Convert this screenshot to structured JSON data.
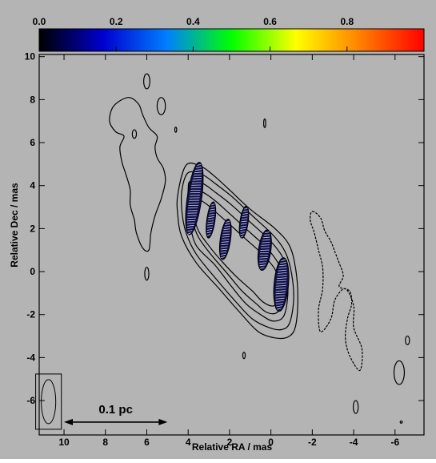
{
  "chart_data": {
    "type": "contour",
    "xlabel": "Relative RA / mas",
    "ylabel": "Relative Dec / mas",
    "xlim": [
      11.2,
      -7.4
    ],
    "ylim": [
      -7.6,
      10.1
    ],
    "x_ticks": [
      10,
      8,
      6,
      4,
      2,
      0,
      -2,
      -4,
      -6
    ],
    "x_tick_labels": [
      "10",
      "8",
      "6",
      "4",
      "2",
      "0",
      "-2",
      "-4",
      "-6"
    ],
    "y_ticks": [
      10,
      8,
      6,
      4,
      2,
      0,
      -2,
      -4,
      -6
    ],
    "y_tick_labels": [
      "10",
      "8",
      "6",
      "4",
      "2",
      "0",
      "-2",
      "-4",
      "-6"
    ],
    "colorbar": {
      "range": [
        0.0,
        1.0
      ],
      "tick_values": [
        0.0,
        0.2,
        0.4,
        0.6,
        0.8
      ],
      "tick_labels": [
        "0.0",
        "0.2",
        "0.4",
        "0.6",
        "0.8"
      ],
      "colors": [
        "#000000",
        "#0000d0",
        "#0080ff",
        "#00ff00",
        "#ffff00",
        "#ff8000",
        "#ff0000"
      ]
    },
    "beam": {
      "x": 10.75,
      "y": -6.05,
      "width_mas": 0.7,
      "height_mas": 2.05
    },
    "scale_bar": {
      "label": "0.1 pc",
      "x_from": 10.0,
      "x_to": 5.0,
      "y": -7.0
    },
    "jet_contours": [
      [
        [
          4.1,
          4.95
        ],
        [
          3.4,
          4.9
        ],
        [
          2.8,
          4.5
        ],
        [
          2.0,
          3.8
        ],
        [
          1.0,
          2.9
        ],
        [
          -0.2,
          2.0
        ],
        [
          -0.9,
          1.2
        ],
        [
          -1.2,
          0.1
        ],
        [
          -1.3,
          -1.2
        ],
        [
          -1.2,
          -2.5
        ],
        [
          -0.9,
          -3.0
        ],
        [
          -0.3,
          -3.1
        ],
        [
          0.6,
          -2.8
        ],
        [
          1.5,
          -1.9
        ],
        [
          2.5,
          -0.8
        ],
        [
          3.6,
          0.4
        ],
        [
          4.3,
          1.6
        ],
        [
          4.5,
          2.6
        ],
        [
          4.5,
          3.6
        ]
      ],
      [
        [
          4.0,
          4.6
        ],
        [
          3.3,
          4.5
        ],
        [
          2.7,
          4.1
        ],
        [
          1.9,
          3.5
        ],
        [
          0.9,
          2.6
        ],
        [
          -0.1,
          1.7
        ],
        [
          -0.7,
          0.9
        ],
        [
          -1.0,
          -0.1
        ],
        [
          -1.1,
          -1.3
        ],
        [
          -0.9,
          -2.4
        ],
        [
          -0.5,
          -2.7
        ],
        [
          0.1,
          -2.6
        ],
        [
          0.9,
          -2.2
        ],
        [
          1.7,
          -1.4
        ],
        [
          2.6,
          -0.4
        ],
        [
          3.6,
          0.8
        ],
        [
          4.1,
          1.8
        ],
        [
          4.3,
          2.8
        ],
        [
          4.3,
          3.8
        ]
      ],
      [
        [
          3.9,
          4.2
        ],
        [
          3.3,
          4.1
        ],
        [
          2.7,
          3.7
        ],
        [
          1.9,
          3.1
        ],
        [
          1.0,
          2.3
        ],
        [
          0.0,
          1.4
        ],
        [
          -0.6,
          0.6
        ],
        [
          -0.8,
          -0.3
        ],
        [
          -0.8,
          -1.3
        ],
        [
          -0.6,
          -2.1
        ],
        [
          -0.1,
          -2.3
        ],
        [
          0.5,
          -2.0
        ],
        [
          1.2,
          -1.5
        ],
        [
          1.9,
          -0.7
        ],
        [
          2.7,
          0.3
        ],
        [
          3.6,
          1.2
        ],
        [
          3.9,
          2.2
        ],
        [
          4.0,
          3.1
        ],
        [
          4.0,
          3.8
        ]
      ],
      [
        [
          3.8,
          3.8
        ],
        [
          3.3,
          3.7
        ],
        [
          2.7,
          3.3
        ],
        [
          2.0,
          2.7
        ],
        [
          1.1,
          1.9
        ],
        [
          0.2,
          1.1
        ],
        [
          -0.4,
          0.3
        ],
        [
          -0.6,
          -0.5
        ],
        [
          -0.6,
          -1.3
        ],
        [
          -0.3,
          -1.9
        ],
        [
          0.2,
          -1.9
        ],
        [
          0.7,
          -1.5
        ],
        [
          1.4,
          -0.9
        ],
        [
          2.1,
          -0.1
        ],
        [
          2.9,
          0.8
        ],
        [
          3.5,
          1.6
        ],
        [
          3.8,
          2.4
        ],
        [
          3.9,
          3.2
        ]
      ],
      [
        [
          3.7,
          3.4
        ],
        [
          3.2,
          3.2
        ],
        [
          2.7,
          2.8
        ],
        [
          2.0,
          2.2
        ],
        [
          1.2,
          1.5
        ],
        [
          0.4,
          0.8
        ],
        [
          -0.2,
          0.1
        ],
        [
          -0.4,
          -0.6
        ],
        [
          -0.4,
          -1.3
        ],
        [
          -0.1,
          -1.6
        ],
        [
          0.4,
          -1.4
        ],
        [
          0.9,
          -0.9
        ],
        [
          1.6,
          -0.3
        ],
        [
          2.3,
          0.4
        ],
        [
          3.0,
          1.2
        ],
        [
          3.5,
          1.9
        ],
        [
          3.7,
          2.6
        ]
      ]
    ],
    "west_lobe_contour": [
      [
        6.9,
        8.1
      ],
      [
        7.6,
        7.7
      ],
      [
        7.8,
        7.0
      ],
      [
        7.5,
        6.5
      ],
      [
        7.1,
        6.3
      ],
      [
        7.3,
        5.8
      ],
      [
        7.2,
        5.1
      ],
      [
        7.0,
        4.5
      ],
      [
        6.8,
        3.8
      ],
      [
        6.8,
        3.1
      ],
      [
        6.6,
        2.4
      ],
      [
        6.5,
        1.8
      ],
      [
        6.2,
        1.1
      ],
      [
        5.9,
        1.0
      ],
      [
        5.8,
        1.8
      ],
      [
        5.6,
        2.6
      ],
      [
        5.3,
        3.4
      ],
      [
        5.1,
        4.2
      ],
      [
        5.2,
        4.8
      ],
      [
        5.5,
        5.3
      ],
      [
        5.6,
        5.8
      ],
      [
        5.5,
        6.3
      ],
      [
        5.9,
        6.7
      ],
      [
        6.2,
        7.3
      ],
      [
        6.4,
        7.8
      ]
    ],
    "east_contour": [
      [
        -2.0,
        2.8
      ],
      [
        -2.4,
        2.5
      ],
      [
        -2.6,
        1.9
      ],
      [
        -2.9,
        1.4
      ],
      [
        -3.1,
        0.9
      ],
      [
        -3.3,
        0.4
      ],
      [
        -3.5,
        -0.2
      ],
      [
        -3.3,
        -0.7
      ],
      [
        -3.8,
        -0.9
      ],
      [
        -3.9,
        -1.5
      ],
      [
        -3.7,
        -2.2
      ],
      [
        -3.6,
        -3.1
      ],
      [
        -3.8,
        -3.9
      ],
      [
        -4.3,
        -4.6
      ],
      [
        -4.4,
        -3.6
      ],
      [
        -4.0,
        -2.6
      ],
      [
        -4.0,
        -1.6
      ],
      [
        -3.6,
        -0.8
      ],
      [
        -3.1,
        -1.3
      ],
      [
        -2.9,
        -2.2
      ],
      [
        -2.4,
        -2.8
      ],
      [
        -2.3,
        -1.8
      ],
      [
        -2.5,
        -0.8
      ],
      [
        -2.5,
        0.2
      ],
      [
        -2.3,
        1.0
      ],
      [
        -2.1,
        1.8
      ],
      [
        -1.9,
        2.4
      ]
    ],
    "small_contours": [
      {
        "x": 6.0,
        "y": 8.85,
        "rx": 0.15,
        "ry": 0.35
      },
      {
        "x": 5.3,
        "y": 7.7,
        "rx": 0.2,
        "ry": 0.4
      },
      {
        "x": 6.6,
        "y": 6.4,
        "rx": 0.1,
        "ry": 0.2
      },
      {
        "x": 4.6,
        "y": 6.6,
        "rx": 0.04,
        "ry": 0.12
      },
      {
        "x": 0.3,
        "y": 6.9,
        "rx": 0.05,
        "ry": 0.2
      },
      {
        "x": 6.0,
        "y": -0.1,
        "rx": 0.1,
        "ry": 0.3
      },
      {
        "x": 1.3,
        "y": -3.9,
        "rx": 0.06,
        "ry": 0.15
      },
      {
        "x": -4.1,
        "y": -6.3,
        "rx": 0.12,
        "ry": 0.3
      },
      {
        "x": -6.2,
        "y": -4.7,
        "rx": 0.25,
        "ry": 0.55
      },
      {
        "x": -6.6,
        "y": -3.2,
        "rx": 0.1,
        "ry": 0.2
      },
      {
        "x": -6.3,
        "y": -7.0,
        "rx": 0.05,
        "ry": 0.05
      }
    ],
    "knots": [
      {
        "x": 3.7,
        "y": 3.4,
        "w": 0.7,
        "h": 3.4,
        "tilt": 8
      },
      {
        "x": 2.9,
        "y": 2.4,
        "w": 0.4,
        "h": 1.7,
        "tilt": 8
      },
      {
        "x": 2.2,
        "y": 1.5,
        "w": 0.5,
        "h": 1.9,
        "tilt": 8
      },
      {
        "x": 1.3,
        "y": 2.3,
        "w": 0.4,
        "h": 1.5,
        "tilt": 8
      },
      {
        "x": 0.3,
        "y": 1.0,
        "w": 0.6,
        "h": 1.9,
        "tilt": 8
      },
      {
        "x": -0.5,
        "y": -0.6,
        "w": 0.7,
        "h": 2.5,
        "tilt": 5
      }
    ]
  }
}
